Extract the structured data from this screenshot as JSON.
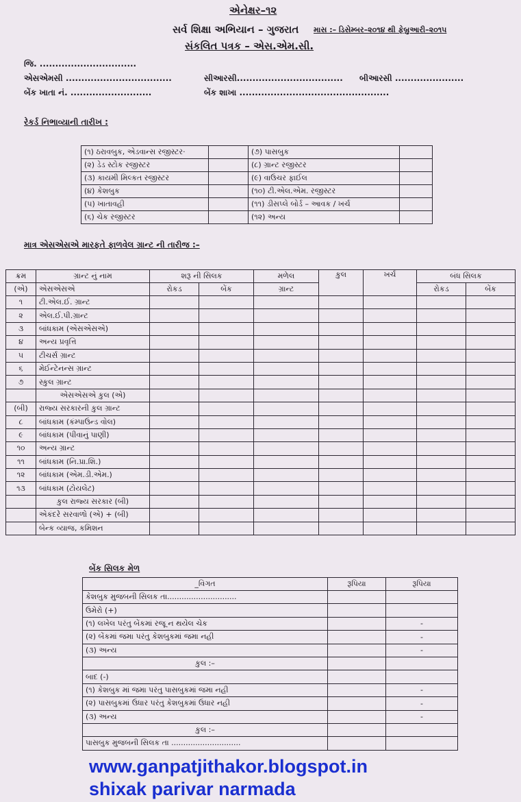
{
  "header": {
    "annex": "એનેક્ષર–૧૨",
    "org": "સર્વ શિક્ષા અભિયાન – ગુજરાત",
    "period": "માસ :– ડિસેમ્બર–૨૦૧૪ થી ફેબ્રુઆરી–૨૦૧૫",
    "title": "સંકલિત પત્રક – એસ.એમ.સી."
  },
  "fields": {
    "district": "જિ. ...............................",
    "smc": "એસએમસી ..................................",
    "crc": "સીઆરસી..................................",
    "brc": "બીઆરસી ......................",
    "bank_account": "બેંક ખાતા નં. ..........................",
    "bank_branch": "બેંક શાખા ................................................"
  },
  "records": {
    "heading": "રેકર્ડ નિભાવ્યાની તારીખ :",
    "left": [
      "(૧) ઠરાવબુક, એડવાન્સ રજીસ્ટર·",
      "(૨) ડેડ સ્ટોક રજીસ્ટર",
      "(૩) કાયમી મિલ્કત રજીસ્ટર",
      "(૪) કેશબુક",
      "(૫) ખાતાવહી",
      "(૬) ચેક રજીસ્ટર"
    ],
    "right": [
      "(૭) પાસબુક",
      "(૮) ગ્રાન્ટ રજીસ્ટર",
      "(૯) વાઉચર ફાઈલ",
      "(૧૦) ટી.એલ.એમ. રજીસ્ટર",
      "(૧૧) ડીસપ્લે બોર્ડ – આવક / ખર્ચ",
      "(૧૨) અન્ય"
    ]
  },
  "grants": {
    "heading": "માત્ર એસએસએ મારફતે ફાળવેલ ગ્રાન્ટ ની તારીજ :–",
    "headers": {
      "krm": "ક્રમ",
      "name": "ગ્રાન્ટ નું નામ",
      "opening": "શરૂ ની સિલક",
      "received": "મળેલ",
      "received2": "ગ્રાન્ટ",
      "total": "કુલ",
      "expense": "ખર્ચ",
      "closing": "બંધ સિલક",
      "cash": "રોકડ",
      "bank": "બેંક",
      "sec_a_no": "(એ)",
      "sec_a_name": "એસએસએ"
    },
    "rows": [
      {
        "no": "૧",
        "name": "ટી.એલ.ઈ. ગ્રાન્ટ"
      },
      {
        "no": "૨",
        "name": "એલ.ઈ.પી.ગ્રાન્ટ"
      },
      {
        "no": "૩",
        "name": "બાંધકામ (એસએસએ)"
      },
      {
        "no": "૪",
        "name": "અન્ય પ્રવૃત્તિ"
      },
      {
        "no": "૫",
        "name": "ટીચર્સ ગ્રાન્ટ"
      },
      {
        "no": "૬",
        "name": "મેઈન્ટેનન્સ ગ્રાન્ટ"
      },
      {
        "no": "૭",
        "name": "સ્કુલ ગ્રાન્ટ"
      },
      {
        "no": "",
        "name": "એસએસએ કુલ (એ)",
        "total": true
      },
      {
        "no": "(બી)",
        "name": "રાજ્ય સરકારની કુલ ગ્રાન્ટ"
      },
      {
        "no": "૮",
        "name": "બાંધકામ (કંમ્પાઉન્ડ વોલ)"
      },
      {
        "no": "૯",
        "name": "બાંધકામ (પીવાનું પાણી)"
      },
      {
        "no": "૧૦",
        "name": "અન્ય ગ્રાન્ટ"
      },
      {
        "no": "૧૧",
        "name": "બાંધકામ (નિ.પ્રા.શિ.)"
      },
      {
        "no": "૧૨",
        "name": "બાંધકામ (એમ.ડી.એમ.)"
      },
      {
        "no": "૧૩",
        "name": "બાંધકામ (ટોયલેટ)"
      },
      {
        "no": "",
        "name": "કુલ રાજ્ય સરકાર (બી)",
        "total": true
      },
      {
        "no": "",
        "name": "એકંદરે સરવાળો (એ) + (બી)"
      },
      {
        "no": "",
        "name": "બેન્ક વ્યાજ, કમિશન"
      }
    ]
  },
  "reconciliation": {
    "heading": "બેંક સિલક મેળ",
    "headers": {
      "detail": "_વિગત",
      "rs1": "રૂપિયા",
      "rs2": "રૂપિયા"
    },
    "rows": [
      {
        "text": "કેશબુક મુજબની સિલક તા.............................",
        "c1": "",
        "c2": ""
      },
      {
        "text": "ઉમેરો (+)",
        "c1": "",
        "c2": ""
      },
      {
        "text": "(૧) લખેલ પરંતુ બેંકમાં રજૂ ન થયેલ ચેક",
        "c1": "",
        "c2": "-"
      },
      {
        "text": "(૨) બેંકમાં જમા પરંતુ કેશબુકમાં જમા નહી",
        "c1": "",
        "c2": "-"
      },
      {
        "text": "(૩) અન્ય",
        "c1": "",
        "c2": "-"
      },
      {
        "text": "કુલ :–",
        "center": true,
        "c1": "",
        "c2": ""
      },
      {
        "text": "બાદ (-)",
        "c1": "",
        "c2": ""
      },
      {
        "text": "(૧) કેશબુક માં જમા પરંતુ પાસબુકમાં જમા નહી",
        "c1": "",
        "c2": "-"
      },
      {
        "text": "(૨)  પાસબુકમાં ઉધાર પરંતુ કેશબુકમાં ઉધાર નહી",
        "c1": "",
        "c2": "-"
      },
      {
        "text": "(૩) અન્ય",
        "c1": "",
        "c2": "-"
      },
      {
        "text": "કુલ :–",
        "center": true,
        "c1": "",
        "c2": ""
      },
      {
        "text": "પાસબુક મુજબની સિલક     તા .............................",
        "c1": "",
        "c2": ""
      }
    ]
  },
  "footer": {
    "url": "www.ganpatjithakor.blogspot.in",
    "tagline": "shixak parivar narmada",
    "color": "#1a2fd0"
  }
}
